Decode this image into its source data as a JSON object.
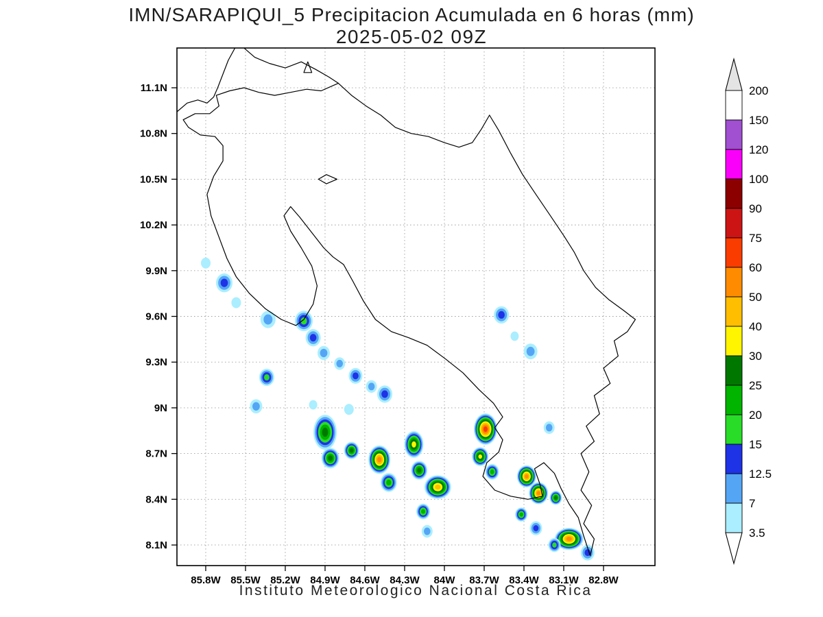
{
  "header": {
    "title_line1": "IMN/SARAPIQUI_5 Precipitacion Acumulada en 6 horas (mm)",
    "title_line2": "2025-05-02 09Z"
  },
  "footer": {
    "credit": "Instituto Meteorologico Nacional Costa Rica"
  },
  "chart_data": {
    "type": "heatmap",
    "title": "IMN/SARAPIQUI_5 Precipitacion Acumulada en 6 horas (mm)",
    "subtitle": "2025-05-02 09Z",
    "units": "mm",
    "region": "Costa Rica",
    "grid": true,
    "x_axis": {
      "range_lon": [
        86.017,
        82.412
      ],
      "ticks": [
        {
          "label": "85.8W",
          "lon": 85.8
        },
        {
          "label": "85.5W",
          "lon": 85.5
        },
        {
          "label": "85.2W",
          "lon": 85.2
        },
        {
          "label": "84.9W",
          "lon": 84.9
        },
        {
          "label": "84.6W",
          "lon": 84.6
        },
        {
          "label": "84.3W",
          "lon": 84.3
        },
        {
          "label": "84W",
          "lon": 84.0
        },
        {
          "label": "83.7W",
          "lon": 83.7
        },
        {
          "label": "83.4W",
          "lon": 83.4
        },
        {
          "label": "83.1W",
          "lon": 83.1
        },
        {
          "label": "82.8W",
          "lon": 82.8
        }
      ]
    },
    "y_axis": {
      "range_lat": [
        11.361,
        7.965
      ],
      "ticks": [
        {
          "label": "11.1N",
          "lat": 11.1
        },
        {
          "label": "10.8N",
          "lat": 10.8
        },
        {
          "label": "10.5N",
          "lat": 10.5
        },
        {
          "label": "10.2N",
          "lat": 10.2
        },
        {
          "label": "9.9N",
          "lat": 9.9
        },
        {
          "label": "9.6N",
          "lat": 9.6
        },
        {
          "label": "9.3N",
          "lat": 9.3
        },
        {
          "label": "9N",
          "lat": 9.0
        },
        {
          "label": "8.7N",
          "lat": 8.7
        },
        {
          "label": "8.4N",
          "lat": 8.4
        },
        {
          "label": "8.1N",
          "lat": 8.1
        }
      ]
    },
    "colorbar": {
      "position": "right",
      "boundary_labels": [
        "200",
        "150",
        "120",
        "100",
        "90",
        "75",
        "60",
        "50",
        "40",
        "30",
        "25",
        "20",
        "15",
        "12.5",
        "7",
        "3.5"
      ],
      "segment_colors_top_to_bottom": [
        "#ffffff",
        "#a050d0",
        "#fa00fa",
        "#8c0000",
        "#cd1414",
        "#fa3c00",
        "#ff8c00",
        "#ffbe00",
        "#fff500",
        "#007800",
        "#00b400",
        "#28dc28",
        "#1e32e6",
        "#55a5f5",
        "#aaeeff"
      ],
      "top_arrow_color": "#e4e4e4",
      "bottom_arrow_color": "#ffffff"
    },
    "palette_ascending": [
      {
        "level": 3.5,
        "color": "#aaeeff"
      },
      {
        "level": 7,
        "color": "#55a5f5"
      },
      {
        "level": 12.5,
        "color": "#1e32e6"
      },
      {
        "level": 15,
        "color": "#28dc28"
      },
      {
        "level": 20,
        "color": "#00b400"
      },
      {
        "level": 25,
        "color": "#007800"
      },
      {
        "level": 30,
        "color": "#fff500"
      },
      {
        "level": 40,
        "color": "#ffbe00"
      },
      {
        "level": 50,
        "color": "#ff8c00"
      },
      {
        "level": 60,
        "color": "#fa3c00"
      },
      {
        "level": 75,
        "color": "#cd1414"
      },
      {
        "level": 90,
        "color": "#8c0000"
      },
      {
        "level": 100,
        "color": "#fa00fa"
      },
      {
        "level": 120,
        "color": "#a050d0"
      },
      {
        "level": 150,
        "color": "#ffffff"
      }
    ],
    "cells": [
      {
        "lon": 85.8,
        "lat": 9.95,
        "value": 3.5,
        "r": 7
      },
      {
        "lon": 85.66,
        "lat": 9.82,
        "value": 12.5,
        "r": 12
      },
      {
        "lon": 85.57,
        "lat": 9.69,
        "value": 3.5,
        "r": 7
      },
      {
        "lon": 85.33,
        "lat": 9.58,
        "value": 7,
        "r": 11
      },
      {
        "lon": 85.06,
        "lat": 9.57,
        "value": 15,
        "r": 13
      },
      {
        "lon": 84.99,
        "lat": 9.46,
        "value": 12.5,
        "r": 11
      },
      {
        "lon": 84.91,
        "lat": 9.36,
        "value": 7,
        "r": 9
      },
      {
        "lon": 84.79,
        "lat": 9.29,
        "value": 7,
        "r": 8
      },
      {
        "lon": 84.67,
        "lat": 9.21,
        "value": 12.5,
        "r": 10
      },
      {
        "lon": 84.55,
        "lat": 9.14,
        "value": 7,
        "r": 8
      },
      {
        "lon": 84.45,
        "lat": 9.09,
        "value": 12.5,
        "r": 11
      },
      {
        "lon": 85.34,
        "lat": 9.2,
        "value": 15,
        "r": 11
      },
      {
        "lon": 85.42,
        "lat": 9.01,
        "value": 7,
        "r": 9
      },
      {
        "lon": 84.99,
        "lat": 9.02,
        "value": 3.5,
        "r": 6
      },
      {
        "lon": 84.9,
        "lat": 8.84,
        "value": 25,
        "r": 17,
        "sy": 1.5
      },
      {
        "lon": 84.86,
        "lat": 8.67,
        "value": 25,
        "r": 13
      },
      {
        "lon": 84.7,
        "lat": 8.72,
        "value": 25,
        "r": 11
      },
      {
        "lon": 84.72,
        "lat": 8.99,
        "value": 3.5,
        "r": 7
      },
      {
        "lon": 84.49,
        "lat": 8.66,
        "value": 50,
        "r": 16,
        "sy": 1.3
      },
      {
        "lon": 84.42,
        "lat": 8.51,
        "value": 20,
        "r": 12
      },
      {
        "lon": 84.23,
        "lat": 8.76,
        "value": 30,
        "r": 14,
        "sy": 1.4
      },
      {
        "lon": 84.19,
        "lat": 8.59,
        "value": 25,
        "r": 12
      },
      {
        "lon": 84.05,
        "lat": 8.48,
        "value": 40,
        "r": 15,
        "sx": 1.3
      },
      {
        "lon": 84.16,
        "lat": 8.32,
        "value": 20,
        "r": 10
      },
      {
        "lon": 84.13,
        "lat": 8.19,
        "value": 7,
        "r": 8
      },
      {
        "lon": 83.69,
        "lat": 8.86,
        "value": 60,
        "r": 17,
        "sy": 1.35
      },
      {
        "lon": 83.73,
        "lat": 8.68,
        "value": 30,
        "r": 12
      },
      {
        "lon": 83.64,
        "lat": 8.58,
        "value": 20,
        "r": 10
      },
      {
        "lon": 83.57,
        "lat": 9.61,
        "value": 12.5,
        "r": 11
      },
      {
        "lon": 83.47,
        "lat": 9.47,
        "value": 3.5,
        "r": 6
      },
      {
        "lon": 83.35,
        "lat": 9.37,
        "value": 7,
        "r": 10
      },
      {
        "lon": 83.21,
        "lat": 8.87,
        "value": 7,
        "r": 8
      },
      {
        "lon": 83.38,
        "lat": 8.55,
        "value": 50,
        "r": 14
      },
      {
        "lon": 83.29,
        "lat": 8.44,
        "value": 50,
        "r": 14
      },
      {
        "lon": 83.16,
        "lat": 8.41,
        "value": 25,
        "r": 9
      },
      {
        "lon": 83.42,
        "lat": 8.3,
        "value": 20,
        "r": 9
      },
      {
        "lon": 83.31,
        "lat": 8.21,
        "value": 12.5,
        "r": 9
      },
      {
        "lon": 83.06,
        "lat": 8.14,
        "value": 50,
        "r": 14,
        "sx": 1.5
      },
      {
        "lon": 83.17,
        "lat": 8.1,
        "value": 15,
        "r": 9
      },
      {
        "lon": 82.92,
        "lat": 8.05,
        "value": 12.5,
        "r": 10
      }
    ],
    "basemap": {
      "coastlines": [
        [
          [
            86.02,
            10.94
          ],
          [
            85.94,
            11.0
          ],
          [
            85.86,
            11.02
          ],
          [
            85.79,
            11.0
          ],
          [
            85.74,
            11.04
          ],
          [
            85.71,
            11.1
          ],
          [
            85.67,
            11.19
          ],
          [
            85.63,
            11.28
          ],
          [
            85.58,
            11.36
          ]
        ],
        [
          [
            85.51,
            11.36
          ],
          [
            85.43,
            11.3
          ],
          [
            85.32,
            11.26
          ],
          [
            85.2,
            11.23
          ],
          [
            85.08,
            11.27
          ],
          [
            84.97,
            11.22
          ],
          [
            84.87,
            11.17
          ],
          [
            84.8,
            11.13
          ],
          [
            84.7,
            11.05
          ],
          [
            84.59,
            10.98
          ],
          [
            84.48,
            10.92
          ],
          [
            84.37,
            10.84
          ],
          [
            84.25,
            10.8
          ],
          [
            84.12,
            10.78
          ],
          [
            84.0,
            10.74
          ],
          [
            83.89,
            10.71
          ],
          [
            83.79,
            10.74
          ],
          [
            83.72,
            10.83
          ],
          [
            83.66,
            10.92
          ]
        ],
        [
          [
            83.66,
            10.92
          ],
          [
            83.59,
            10.82
          ],
          [
            83.5,
            10.67
          ],
          [
            83.41,
            10.53
          ],
          [
            83.31,
            10.4
          ],
          [
            83.2,
            10.26
          ],
          [
            83.1,
            10.13
          ],
          [
            83.02,
            10.02
          ],
          [
            82.95,
            9.9
          ],
          [
            82.86,
            9.79
          ],
          [
            82.76,
            9.71
          ],
          [
            82.65,
            9.64
          ],
          [
            82.56,
            9.58
          ],
          [
            82.62,
            9.5
          ],
          [
            82.72,
            9.44
          ],
          [
            82.69,
            9.34
          ],
          [
            82.8,
            9.26
          ],
          [
            82.75,
            9.16
          ],
          [
            82.87,
            9.08
          ],
          [
            82.83,
            8.96
          ],
          [
            82.93,
            8.88
          ],
          [
            82.87,
            8.78
          ],
          [
            82.97,
            8.7
          ],
          [
            82.91,
            8.58
          ],
          [
            82.97,
            8.46
          ],
          [
            82.89,
            8.36
          ],
          [
            82.95,
            8.24
          ],
          [
            82.87,
            8.14
          ],
          [
            82.9,
            8.03
          ],
          [
            82.95,
            8.16
          ],
          [
            82.99,
            8.28
          ],
          [
            83.06,
            8.37
          ],
          [
            83.12,
            8.47
          ],
          [
            83.17,
            8.57
          ],
          [
            83.25,
            8.64
          ],
          [
            83.32,
            8.6
          ],
          [
            83.28,
            8.5
          ],
          [
            83.26,
            8.42
          ],
          [
            83.37,
            8.4
          ],
          [
            83.5,
            8.42
          ],
          [
            83.62,
            8.46
          ],
          [
            83.71,
            8.55
          ],
          [
            83.68,
            8.64
          ],
          [
            83.59,
            8.71
          ],
          [
            83.56,
            8.79
          ],
          [
            83.62,
            8.87
          ],
          [
            83.56,
            8.94
          ],
          [
            83.63,
            9.03
          ],
          [
            83.74,
            9.12
          ],
          [
            83.86,
            9.23
          ],
          [
            83.99,
            9.32
          ],
          [
            84.13,
            9.41
          ],
          [
            84.27,
            9.46
          ],
          [
            84.4,
            9.5
          ],
          [
            84.52,
            9.58
          ],
          [
            84.61,
            9.7
          ],
          [
            84.69,
            9.83
          ],
          [
            84.76,
            9.94
          ],
          [
            84.84,
            9.99
          ],
          [
            84.91,
            10.05
          ],
          [
            85.0,
            10.15
          ],
          [
            85.09,
            10.25
          ],
          [
            85.16,
            10.32
          ],
          [
            85.21,
            10.26
          ],
          [
            85.16,
            10.16
          ],
          [
            85.08,
            10.05
          ],
          [
            85.0,
            9.93
          ],
          [
            84.96,
            9.8
          ],
          [
            84.99,
            9.68
          ],
          [
            85.06,
            9.58
          ],
          [
            85.12,
            9.54
          ],
          [
            85.23,
            9.58
          ],
          [
            85.35,
            9.65
          ],
          [
            85.47,
            9.75
          ],
          [
            85.57,
            9.86
          ],
          [
            85.64,
            9.98
          ],
          [
            85.7,
            10.12
          ],
          [
            85.76,
            10.26
          ],
          [
            85.79,
            10.4
          ],
          [
            85.74,
            10.52
          ],
          [
            85.67,
            10.62
          ],
          [
            85.67,
            10.72
          ],
          [
            85.73,
            10.78
          ],
          [
            85.84,
            10.79
          ],
          [
            85.93,
            10.84
          ],
          [
            85.97,
            10.89
          ],
          [
            85.88,
            10.93
          ],
          [
            85.77,
            10.93
          ],
          [
            85.7,
            10.98
          ],
          [
            85.72,
            11.05
          ],
          [
            85.62,
            11.08
          ],
          [
            85.51,
            11.1
          ],
          [
            85.4,
            11.07
          ],
          [
            85.28,
            11.05
          ],
          [
            85.16,
            11.07
          ],
          [
            85.04,
            11.09
          ],
          [
            84.93,
            11.08
          ],
          [
            84.8,
            11.13
          ]
        ],
        [
          [
            85.06,
            11.2
          ],
          [
            85.0,
            11.2
          ],
          [
            85.03,
            11.27
          ],
          [
            85.06,
            11.2
          ]
        ],
        [
          [
            84.95,
            10.5
          ],
          [
            84.89,
            10.53
          ],
          [
            84.81,
            10.5
          ],
          [
            84.89,
            10.47
          ],
          [
            84.95,
            10.5
          ]
        ]
      ]
    }
  }
}
